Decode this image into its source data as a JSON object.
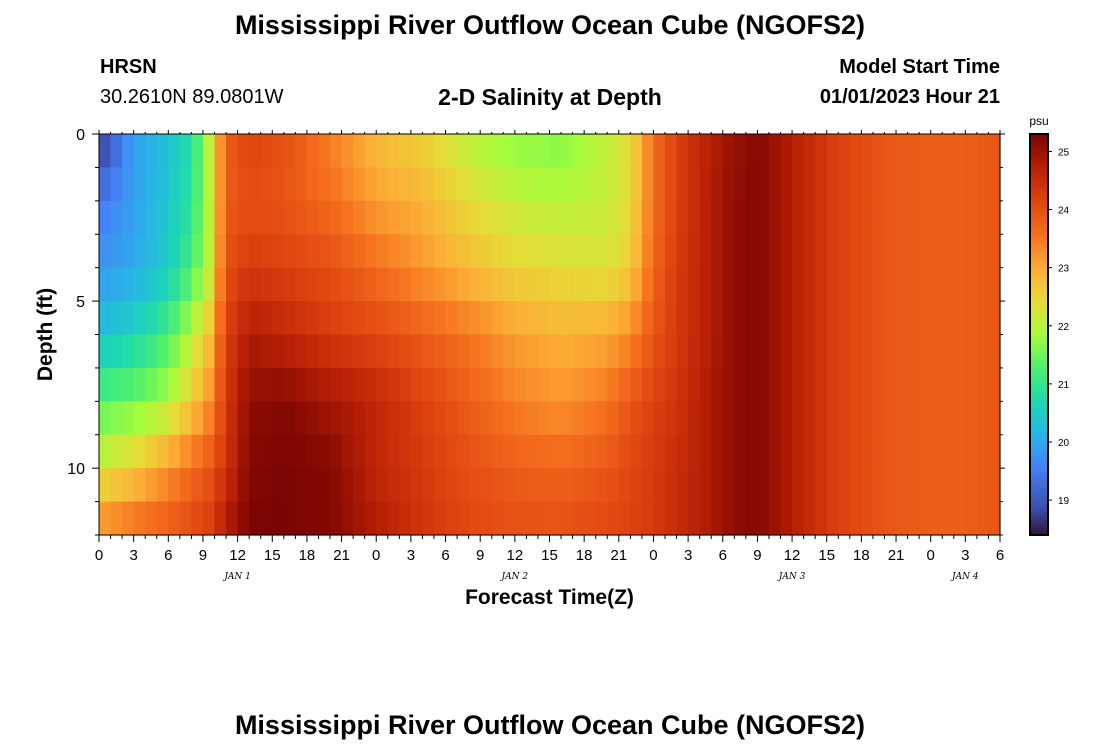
{
  "header": {
    "title": "Mississippi River Outflow Ocean Cube (NGOFS2)",
    "station": "HRSN",
    "coordinates": "30.2610N  89.0801W",
    "subtitle": "2-D Salinity at Depth",
    "model_start_label": "Model Start Time",
    "model_start_value": "01/01/2023 Hour 21"
  },
  "footer": {
    "title": "Mississippi River Outflow Ocean Cube (NGOFS2)"
  },
  "chart_data": {
    "type": "heatmap",
    "title": "2-D Salinity at Depth",
    "xlabel": "Forecast Time(Z)",
    "ylabel": "Depth (ft)",
    "x_range_hours": [
      0,
      78
    ],
    "y_range_ft": [
      0,
      12
    ],
    "y_ticks": [
      0,
      5,
      10
    ],
    "x_tick_hours": [
      0,
      3,
      6,
      9,
      12,
      15,
      18,
      21,
      24,
      27,
      30,
      33,
      36,
      39,
      42,
      45,
      48,
      51,
      54,
      57,
      60,
      63,
      66,
      69,
      72,
      75,
      78
    ],
    "x_tick_labels": [
      "0",
      "3",
      "6",
      "9",
      "12",
      "15",
      "18",
      "21",
      "0",
      "3",
      "6",
      "9",
      "12",
      "15",
      "18",
      "21",
      "0",
      "3",
      "6",
      "9",
      "12",
      "15",
      "18",
      "21",
      "0",
      "3",
      "6"
    ],
    "date_labels": [
      {
        "hour": 12,
        "label": "JAN 1"
      },
      {
        "hour": 36,
        "label": "JAN 2"
      },
      {
        "hour": 60,
        "label": "JAN 3"
      },
      {
        "hour": 75,
        "label": "JAN 4"
      }
    ],
    "colorbar": {
      "unit": "psu",
      "min": 18.4,
      "max": 25.3,
      "ticks": [
        19,
        20,
        21,
        22,
        23,
        24,
        25
      ]
    },
    "salinity_psu": {
      "depth_ft": [
        0,
        2,
        4,
        6,
        8,
        10,
        12
      ],
      "hours": [
        0,
        3,
        6,
        8,
        9.5,
        11,
        13,
        16,
        20,
        24,
        28,
        32,
        36,
        40,
        44,
        46,
        48,
        50,
        52,
        55,
        57,
        59,
        61,
        64,
        68,
        72,
        75,
        78
      ],
      "values": [
        [
          18.5,
          19.9,
          20.3,
          20.8,
          22.0,
          23.8,
          24.2,
          24.0,
          23.4,
          22.8,
          22.5,
          22.0,
          21.7,
          21.6,
          22.1,
          22.4,
          23.6,
          24.2,
          24.6,
          25.0,
          25.2,
          24.9,
          24.6,
          24.2,
          23.9,
          23.8,
          23.8,
          23.9
        ],
        [
          19.4,
          19.9,
          20.4,
          20.9,
          22.0,
          23.8,
          24.0,
          23.9,
          23.6,
          23.1,
          22.9,
          22.4,
          22.1,
          22.0,
          22.1,
          22.4,
          23.6,
          24.2,
          24.6,
          25.1,
          25.2,
          24.9,
          24.6,
          24.2,
          23.9,
          23.8,
          23.8,
          23.9
        ],
        [
          19.8,
          20.0,
          20.5,
          21.2,
          22.0,
          24.0,
          24.3,
          24.2,
          24.0,
          23.6,
          23.2,
          22.8,
          22.5,
          22.4,
          22.3,
          22.6,
          23.7,
          24.3,
          24.6,
          25.1,
          25.2,
          24.9,
          24.6,
          24.2,
          23.9,
          23.8,
          23.8,
          23.9
        ],
        [
          20.3,
          20.6,
          21.2,
          22.0,
          22.7,
          24.2,
          24.8,
          24.6,
          24.3,
          24.1,
          23.8,
          23.5,
          23.1,
          22.9,
          23.0,
          23.3,
          23.9,
          24.3,
          24.6,
          25.1,
          25.2,
          24.9,
          24.6,
          24.2,
          23.9,
          23.8,
          23.8,
          23.9
        ],
        [
          21.3,
          21.5,
          21.9,
          22.6,
          23.2,
          24.3,
          25.1,
          25.2,
          24.9,
          24.6,
          24.2,
          23.8,
          23.4,
          23.2,
          23.5,
          23.9,
          24.2,
          24.4,
          24.7,
          25.1,
          25.2,
          24.9,
          24.6,
          24.2,
          23.9,
          23.8,
          23.8,
          23.9
        ],
        [
          22.2,
          22.6,
          23.2,
          23.6,
          23.9,
          24.4,
          25.2,
          25.3,
          25.2,
          24.6,
          24.3,
          24.0,
          23.8,
          23.7,
          23.9,
          24.1,
          24.3,
          24.5,
          24.7,
          25.1,
          25.2,
          24.9,
          24.6,
          24.2,
          23.9,
          23.8,
          23.8,
          23.9
        ],
        [
          23.4,
          23.7,
          23.9,
          24.1,
          24.3,
          24.8,
          25.3,
          25.3,
          25.2,
          24.8,
          24.4,
          24.1,
          24.0,
          24.0,
          24.1,
          24.2,
          24.3,
          24.5,
          24.7,
          25.1,
          25.2,
          24.9,
          24.6,
          24.2,
          23.9,
          23.8,
          23.8,
          23.9
        ]
      ]
    }
  }
}
